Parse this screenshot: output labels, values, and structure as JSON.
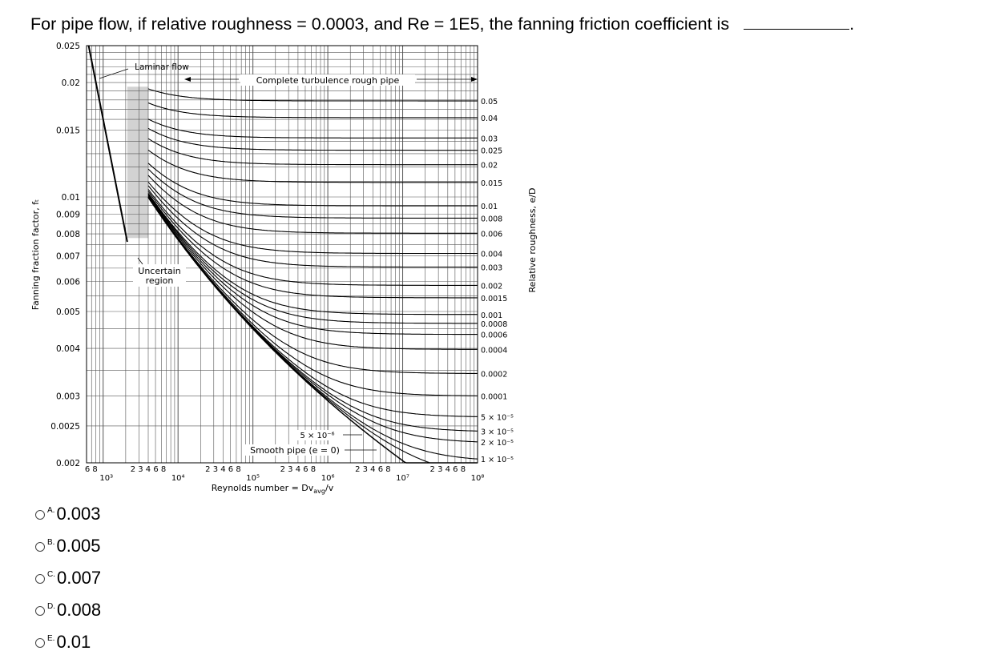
{
  "question": {
    "text": "For pipe flow, if relative roughness = 0.0003, and Re = 1E5, the fanning friction coefficient is",
    "blank_suffix": "."
  },
  "chart_data": {
    "type": "line",
    "xlabel_prefix": "Reynolds number = ",
    "xlabel_expr": "Dv",
    "xlabel_sub": "avg",
    "xlabel_suffix": "/v",
    "ylabel": "Fanning fraction factor, fₜ",
    "right_axis_label": "Relative roughness, e/D",
    "x_scale": "log",
    "y_scale": "log",
    "xlim": [
      600,
      100000000
    ],
    "ylim": [
      0.002,
      0.025
    ],
    "grid": true,
    "y_ticks": [
      "0.025",
      "0.02",
      "0.015",
      "0.01",
      "0.009",
      "0.008",
      "0.007",
      "0.006",
      "0.005",
      "0.004",
      "0.003",
      "0.0025",
      "0.002"
    ],
    "y_tick_values": [
      0.025,
      0.02,
      0.015,
      0.01,
      0.009,
      0.008,
      0.007,
      0.006,
      0.005,
      0.004,
      0.003,
      0.0025,
      0.002
    ],
    "x_decades": [
      "10³",
      "10⁴",
      "10⁵",
      "10⁶",
      "10⁷",
      "10⁸"
    ],
    "x_minor_label_groups": [
      "6 8",
      "2 3 4 6 8",
      "2 3 4 6 8",
      "2 3 4 6 8",
      "2 3 4 6 8",
      "2 3 4 6 8"
    ],
    "roughness_labels": [
      "0.05",
      "0.04",
      "0.03",
      "0.025",
      "0.02",
      "0.015",
      "0.01",
      "0.008",
      "0.006",
      "0.004",
      "0.003",
      "0.002",
      "0.0015",
      "0.001",
      "0.0008",
      "0.0006",
      "0.0004",
      "0.0002",
      "0.0001",
      "5 × 10⁻⁵",
      "3 × 10⁻⁵",
      "2 × 10⁻⁵",
      "1 × 10⁻⁵"
    ],
    "roughness_values": [
      0.05,
      0.04,
      0.03,
      0.025,
      0.02,
      0.015,
      0.01,
      0.008,
      0.006,
      0.004,
      0.003,
      0.002,
      0.0015,
      0.001,
      0.0008,
      0.0006,
      0.0004,
      0.0002,
      0.0001,
      5e-05,
      3e-05,
      2e-05,
      1e-05
    ],
    "annotations": {
      "laminar": "Laminar flow",
      "complete_turbulence": "Complete turbulence rough pipe",
      "uncertain_1": "Uncertain",
      "uncertain_2": "region",
      "smooth": "Smooth pipe (e = 0)",
      "small_roughness": "5 × 10⁻⁶"
    },
    "uncertain_region_re": [
      2100,
      4000
    ]
  },
  "options": [
    {
      "letter": "A.",
      "value": "0.003"
    },
    {
      "letter": "B.",
      "value": "0.005"
    },
    {
      "letter": "C.",
      "value": "0.007"
    },
    {
      "letter": "D.",
      "value": "0.008"
    },
    {
      "letter": "E.",
      "value": "0.01"
    }
  ]
}
